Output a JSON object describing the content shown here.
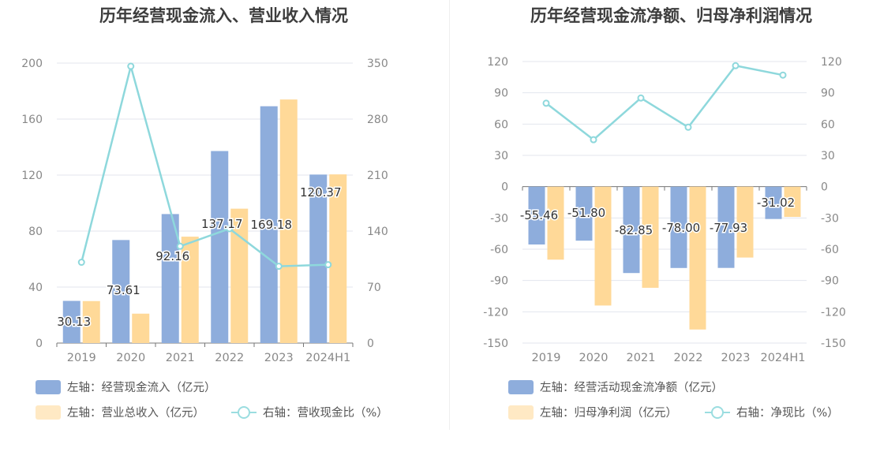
{
  "colors": {
    "bar1": "#8eaddc",
    "bar2": "#ffd998",
    "line": "#8ed8dc",
    "grid": "#e3e6ee",
    "axis": "#888888"
  },
  "chart_data": [
    {
      "type": "bar+line",
      "title": "历年经营现金流入、营业收入情况",
      "categories": [
        "2019",
        "2020",
        "2021",
        "2022",
        "2023",
        "2024H1"
      ],
      "left_axis": {
        "ylim": [
          0,
          200
        ],
        "ticks": [
          "0",
          "40",
          "80",
          "120",
          "160",
          "200"
        ]
      },
      "right_axis": {
        "ylim": [
          0,
          350
        ],
        "ticks": [
          "0",
          "70",
          "140",
          "210",
          "280",
          "350"
        ]
      },
      "series": [
        {
          "name": "左轴：经营现金流入（亿元）",
          "type": "bar",
          "axis": "left",
          "values": [
            30.13,
            73.61,
            92.16,
            137.17,
            169.18,
            120.37
          ],
          "labels": [
            "30.13",
            "73.61",
            "92.16",
            "137.17",
            "169.18",
            "120.37"
          ]
        },
        {
          "name": "左轴：营业总收入（亿元）",
          "type": "bar",
          "axis": "left",
          "values": [
            30.0,
            21.0,
            76.0,
            96.0,
            174.0,
            120.5
          ]
        },
        {
          "name": "右轴：营收现金比（%）",
          "type": "line",
          "axis": "right",
          "values": [
            101,
            346,
            121,
            143,
            96,
            98
          ]
        }
      ]
    },
    {
      "type": "bar+line",
      "title": "历年经营现金流净额、归母净利润情况",
      "categories": [
        "2019",
        "2020",
        "2021",
        "2022",
        "2023",
        "2024H1"
      ],
      "left_axis": {
        "ylim": [
          -150,
          120
        ],
        "ticks": [
          "-150",
          "-120",
          "-90",
          "-60",
          "-30",
          "0",
          "30",
          "60",
          "90",
          "120"
        ]
      },
      "right_axis": {
        "ylim": [
          -150,
          120
        ],
        "ticks": [
          "-150",
          "-120",
          "-90",
          "-60",
          "-30",
          "0",
          "30",
          "60",
          "90",
          "120"
        ]
      },
      "series": [
        {
          "name": "左轴：经营活动现金流净额（亿元）",
          "type": "bar",
          "axis": "left",
          "values": [
            -55.46,
            -51.8,
            -82.85,
            -78.0,
            -77.93,
            -31.02
          ],
          "labels": [
            "-55.46",
            "-51.80",
            "-82.85",
            "-78.00",
            "-77.93",
            "-31.02"
          ]
        },
        {
          "name": "左轴：归母净利润（亿元）",
          "type": "bar",
          "axis": "left",
          "values": [
            -70,
            -114,
            -97,
            -137,
            -68,
            -29
          ]
        },
        {
          "name": "右轴：净现比（%）",
          "type": "line",
          "axis": "right",
          "values": [
            80,
            45,
            85,
            57,
            116,
            107
          ]
        }
      ]
    }
  ]
}
